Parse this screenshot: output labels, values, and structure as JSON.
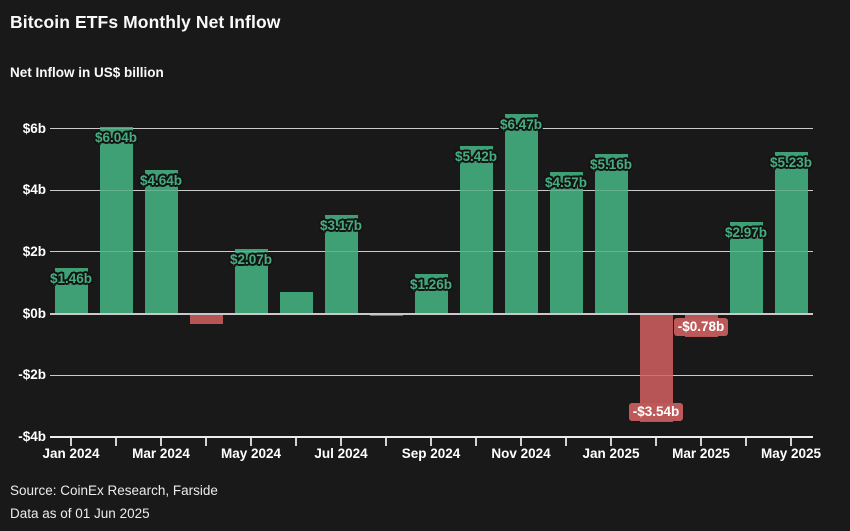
{
  "header": {
    "title": "Bitcoin ETFs Monthly Net Inflow",
    "subtitle": "Net Inflow in US$ billion"
  },
  "footer": {
    "source": "Source: CoinEx Research, Farside",
    "as_of": "Data as of 01 Jun 2025"
  },
  "chart_data": {
    "type": "bar",
    "title": "Bitcoin ETFs Monthly Net Inflow",
    "ylabel": "Net Inflow in US$ billion",
    "categories": [
      "Jan 2024",
      "Feb 2024",
      "Mar 2024",
      "Apr 2024",
      "May 2024",
      "Jun 2024",
      "Jul 2024",
      "Aug 2024",
      "Sep 2024",
      "Oct 2024",
      "Nov 2024",
      "Dec 2024",
      "Jan 2025",
      "Feb 2025",
      "Mar 2025",
      "Apr 2025",
      "May 2025"
    ],
    "values": [
      1.46,
      6.04,
      4.64,
      -0.35,
      2.07,
      0.67,
      3.17,
      -0.1,
      1.26,
      5.42,
      6.47,
      4.57,
      5.16,
      -3.54,
      -0.78,
      2.97,
      5.23
    ],
    "data_labels": [
      "$1.46b",
      "$6.04b",
      "$4.64b",
      "",
      "$2.07b",
      "",
      "$3.17b",
      "",
      "$1.26b",
      "$5.42b",
      "$6.47b",
      "$4.57b",
      "$5.16b",
      "-$3.54b",
      "-$0.78b",
      "$2.97b",
      "$5.23b"
    ],
    "x_tick_labels": [
      "Jan 2024",
      "Mar 2024",
      "May 2024",
      "Jul 2024",
      "Sep 2024",
      "Nov 2024",
      "Jan 2025",
      "Mar 2025",
      "May 2025"
    ],
    "x_tick_every": 2,
    "y_ticks": [
      {
        "label": "$6b",
        "value": 6
      },
      {
        "label": "$4b",
        "value": 4
      },
      {
        "label": "$2b",
        "value": 2
      },
      {
        "label": "$0b",
        "value": 0
      },
      {
        "label": "-$2b",
        "value": -2
      },
      {
        "label": "-$4b",
        "value": -4
      }
    ],
    "ylim": [
      -4,
      6
    ],
    "grid": true,
    "legend": "none",
    "colors": {
      "positive_bar": "#3fa076",
      "negative_bar": "#b75556",
      "positive_label_text": "#46ad81",
      "negative_label_bg": "#bd5a59",
      "negative_label_text": "#ffffff",
      "background": "#191919",
      "gridline": "#bdbdbd",
      "axis": "#ededed",
      "text": "#ffffff"
    }
  }
}
